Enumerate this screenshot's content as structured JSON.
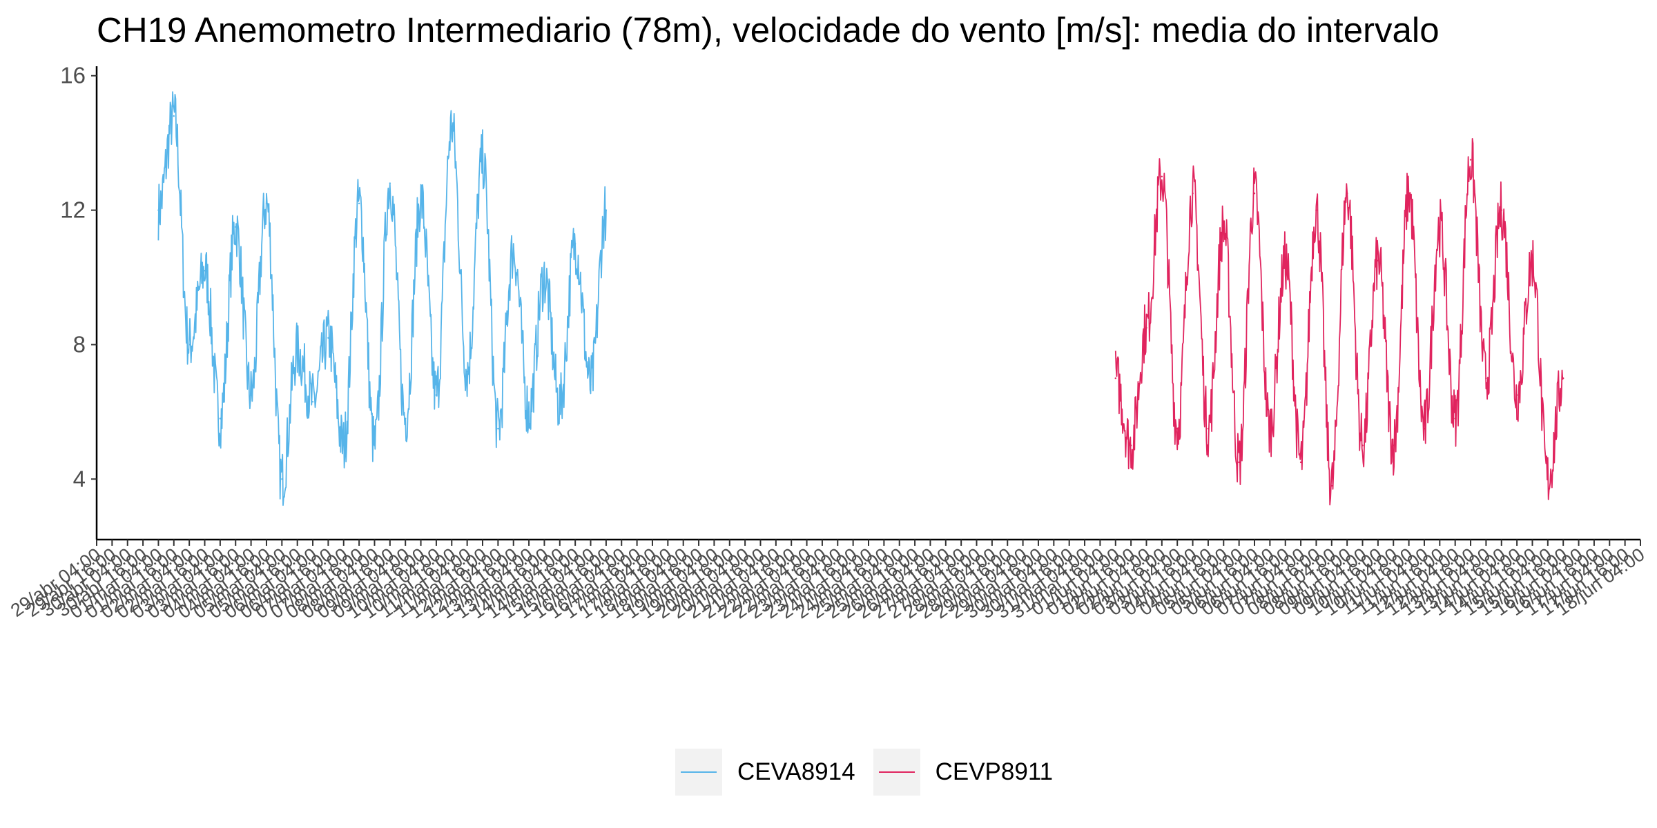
{
  "title": "CH19 Anemometro Intermediario (78m), velocidade do vento [m/s]: media do intervalo",
  "chart_data": {
    "type": "line",
    "title": "CH19 Anemometro Intermediario (78m), velocidade do vento [m/s]: media do intervalo",
    "xlabel": "",
    "ylabel": "",
    "x_type": "time",
    "x_tick_labels": [
      "29/abr 04:00",
      "18/jun 04:00"
    ],
    "x_tick_interval_hours": 12,
    "xlim": [
      "2020-04-29 04:00",
      "2020-06-18 04:00"
    ],
    "ylim": [
      2.2,
      16.2
    ],
    "yticks": [
      4,
      8,
      12,
      16
    ],
    "grid": false,
    "legend_position": "bottom",
    "series": [
      {
        "name": "CEVA8914",
        "color": "#56b4e9",
        "x": [
          "2020-05-01 04:00",
          "2020-05-01 16:00",
          "2020-05-02 04:00",
          "2020-05-02 16:00",
          "2020-05-03 04:00",
          "2020-05-03 16:00",
          "2020-05-04 04:00",
          "2020-05-04 16:00",
          "2020-05-05 04:00",
          "2020-05-05 16:00",
          "2020-05-06 04:00",
          "2020-05-06 16:00",
          "2020-05-07 04:00",
          "2020-05-07 16:00",
          "2020-05-08 04:00",
          "2020-05-08 16:00",
          "2020-05-09 04:00",
          "2020-05-09 16:00",
          "2020-05-10 04:00",
          "2020-05-10 16:00",
          "2020-05-11 04:00",
          "2020-05-11 16:00",
          "2020-05-12 04:00",
          "2020-05-12 16:00",
          "2020-05-13 04:00",
          "2020-05-13 16:00",
          "2020-05-14 04:00",
          "2020-05-14 16:00",
          "2020-05-15 04:00",
          "2020-05-15 16:00"
        ],
        "y": [
          12.0,
          14.8,
          8.0,
          10.2,
          5.8,
          11.5,
          6.5,
          12.2,
          4.0,
          7.8,
          6.3,
          8.2,
          5.0,
          12.2,
          5.0,
          12.8,
          5.8,
          12.3,
          6.5,
          14.5,
          7.2,
          13.5,
          5.5,
          10.8,
          6.0,
          10.0,
          6.2,
          11.0,
          6.8,
          12.0
        ]
      },
      {
        "name": "CEVP8911",
        "color": "#e0245e",
        "x": [
          "2020-06-01 04:00",
          "2020-06-01 16:00",
          "2020-06-02 04:00",
          "2020-06-02 16:00",
          "2020-06-03 04:00",
          "2020-06-03 16:00",
          "2020-06-04 04:00",
          "2020-06-04 16:00",
          "2020-06-05 04:00",
          "2020-06-05 16:00",
          "2020-06-06 04:00",
          "2020-06-06 16:00",
          "2020-06-07 04:00",
          "2020-06-07 16:00",
          "2020-06-08 04:00",
          "2020-06-08 16:00",
          "2020-06-09 04:00",
          "2020-06-09 16:00",
          "2020-06-10 04:00",
          "2020-06-10 16:00",
          "2020-06-11 04:00",
          "2020-06-11 16:00",
          "2020-06-12 04:00",
          "2020-06-12 16:00",
          "2020-06-13 04:00",
          "2020-06-13 16:00",
          "2020-06-14 04:00",
          "2020-06-14 16:00",
          "2020-06-15 04:00",
          "2020-06-15 16:00"
        ],
        "y": [
          7.0,
          5.0,
          8.5,
          13.0,
          5.5,
          12.5,
          5.5,
          11.5,
          4.5,
          12.5,
          5.5,
          10.5,
          4.5,
          12.0,
          3.8,
          12.5,
          5.0,
          10.5,
          5.0,
          12.5,
          5.5,
          11.5,
          5.8,
          13.5,
          7.0,
          12.0,
          6.5,
          10.5,
          4.0,
          7.0
        ]
      }
    ]
  },
  "legend": {
    "items": [
      {
        "label": "CEVA8914",
        "color": "#56b4e9"
      },
      {
        "label": "CEVP8911",
        "color": "#e0245e"
      }
    ]
  }
}
